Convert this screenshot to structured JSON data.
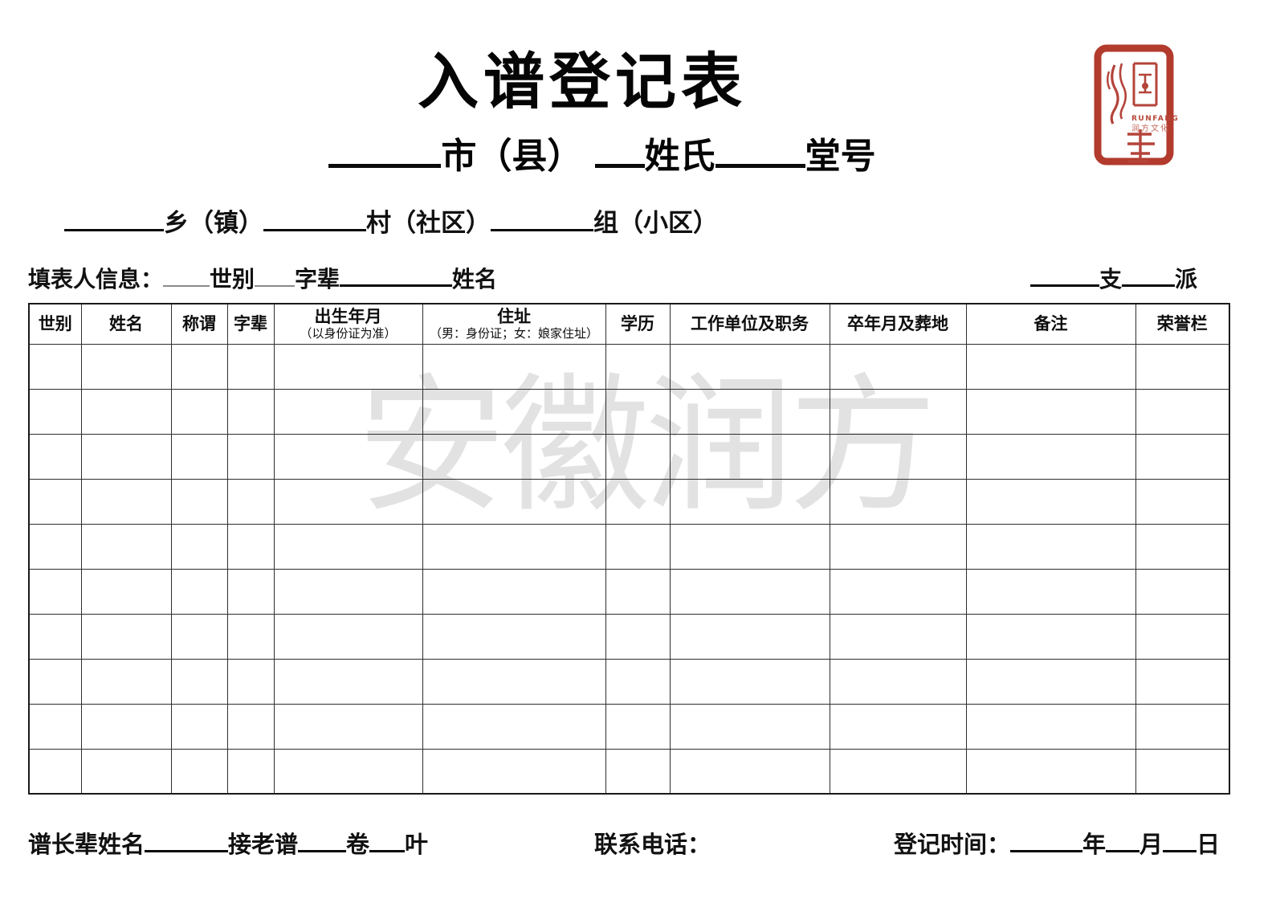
{
  "title": "入谱登记表",
  "subtitle": {
    "city_label": "市（县）",
    "surname_label": "姓氏",
    "hall_label": "堂号"
  },
  "location_line": {
    "town_label": "乡（镇）",
    "village_label": "村（社区）",
    "group_label": "组（小区）"
  },
  "filler_line": {
    "prefix": "填表人信息：",
    "generation_label": "世别",
    "zibei_label": "字辈",
    "name_label": "姓名",
    "branch_label": "支",
    "pai_label": "派"
  },
  "table": {
    "row_count": 10,
    "headers": [
      {
        "main": "世别"
      },
      {
        "main": "姓名"
      },
      {
        "main": "称谓"
      },
      {
        "main": "字辈"
      },
      {
        "main": "出生年月",
        "sub": "（以身份证为准）"
      },
      {
        "main": "住址",
        "sub": "（男：身份证；女：娘家住址）"
      },
      {
        "main": "学历"
      },
      {
        "main": "工作单位及职务"
      },
      {
        "main": "卒年月及葬地"
      },
      {
        "main": "备注"
      },
      {
        "main": "荣誉栏"
      }
    ]
  },
  "watermark": "安徽润方",
  "seal": {
    "latin": "RUNFANG",
    "chinese": "润方文化",
    "color": "#b23b2e"
  },
  "footer": {
    "elder_label": "谱长辈姓名",
    "old_genealogy_label": "接老谱",
    "volume_label": "卷",
    "leaf_label": "叶",
    "phone_label": "联系电话：",
    "register_label": "登记时间：",
    "year_label": "年",
    "month_label": "月",
    "day_label": "日"
  }
}
